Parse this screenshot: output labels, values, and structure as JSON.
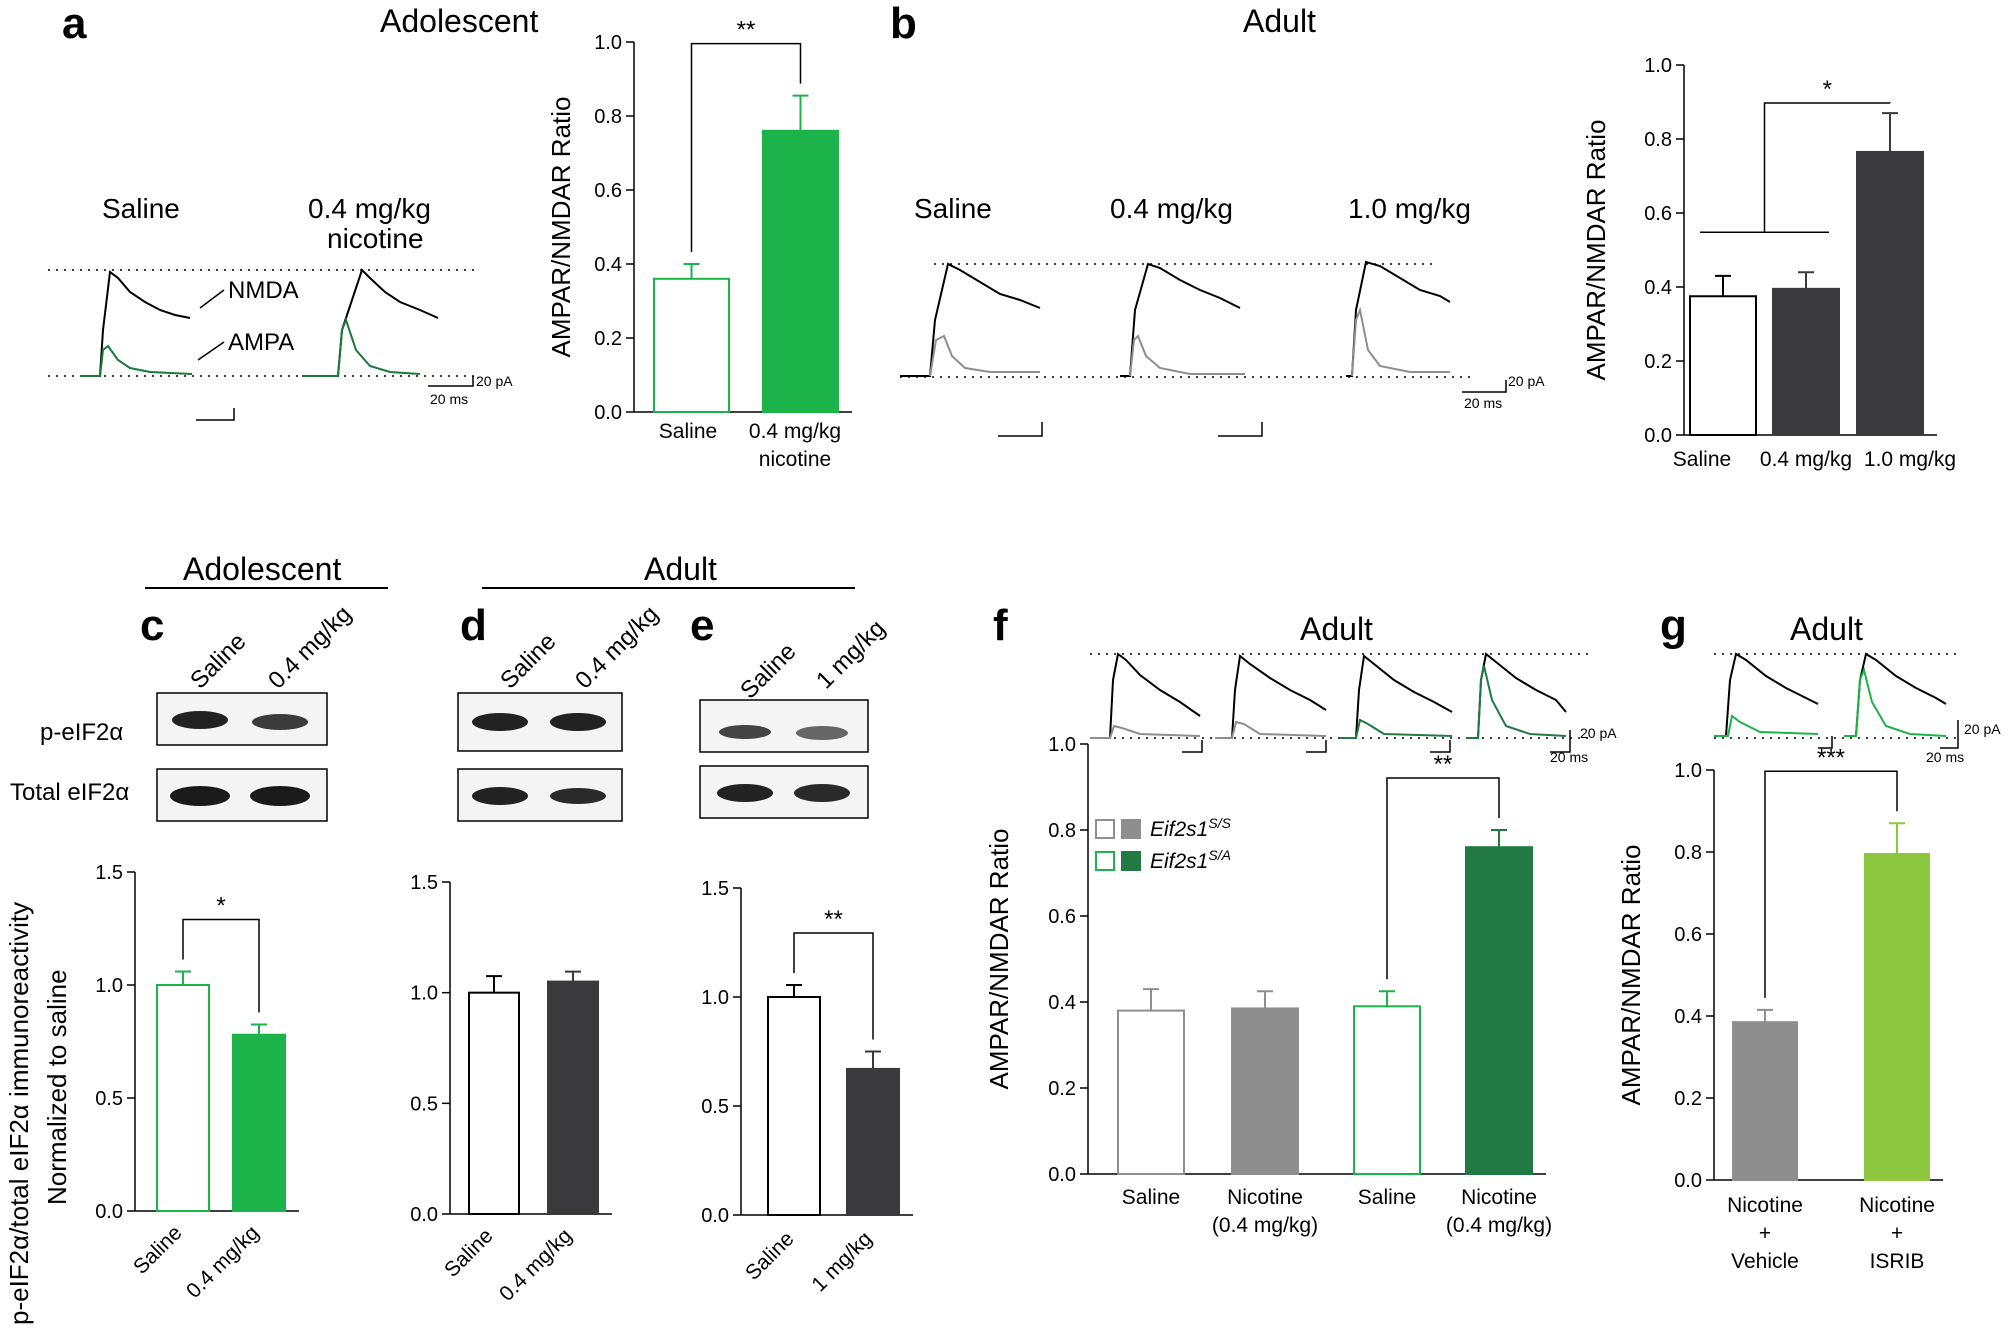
{
  "colors": {
    "green": "#1db34b",
    "dark_green": "#217a43",
    "light_green": "#8dc63f",
    "dark_gray": "#3a3a3c",
    "gray": "#8e8e8e",
    "black": "#000000",
    "outline_green": "#1db34b",
    "outline_gray": "#8e8e8e"
  },
  "panels": {
    "a": {
      "letter": "a",
      "title": "Adolescent",
      "trace_labels": [
        "Saline",
        "0.4 mg/kg",
        "nicotine"
      ],
      "nmda_label": "NMDA",
      "ampa_label": "AMPA",
      "scale_y": "20 pA",
      "scale_x": "20 ms"
    },
    "b": {
      "letter": "b",
      "title": "Adult",
      "trace_labels": [
        "Saline",
        "0.4 mg/kg",
        "1.0 mg/kg"
      ],
      "scale_y": "20 pA",
      "scale_x": "20 ms"
    },
    "c": {
      "letter": "c",
      "group_title": "Adolescent",
      "lanes": [
        "Saline",
        "0.4 mg/kg"
      ],
      "row_labels": [
        "p-eIF2α",
        "Total eIF2α"
      ],
      "ylabel_line1": "p-eIF2α/total eIF2α immunoreactivity",
      "ylabel_line2": "Normalized to saline"
    },
    "d": {
      "letter": "d",
      "group_title": "Adult",
      "lanes": [
        "Saline",
        "0.4 mg/kg"
      ]
    },
    "e": {
      "letter": "e",
      "lanes": [
        "Saline",
        "1 mg/kg"
      ]
    },
    "f": {
      "letter": "f",
      "title": "Adult",
      "scale_y": "20 pA",
      "scale_x": "20 ms"
    },
    "g": {
      "letter": "g",
      "title": "Adult",
      "scale_y": "20 pA",
      "scale_x": "20 ms"
    }
  },
  "chart_data": [
    {
      "id": "a",
      "type": "bar",
      "ylabel": "AMPAR/NMDAR Ratio",
      "ylim": [
        0,
        1.0
      ],
      "yticks": [
        "0.0",
        "0.2",
        "0.4",
        "0.6",
        "0.8",
        "1.0"
      ],
      "categories": [
        "Saline",
        "0.4 mg/kg\nnicotine"
      ],
      "values": [
        0.36,
        0.76
      ],
      "errors": [
        0.04,
        0.095
      ],
      "styles": [
        "outline_green",
        "green"
      ],
      "significance": [
        {
          "bars": [
            0,
            1
          ],
          "label": "**"
        }
      ]
    },
    {
      "id": "b",
      "type": "bar",
      "ylabel": "AMPAR/NMDAR Ratio",
      "ylim": [
        0,
        1.0
      ],
      "yticks": [
        "0.0",
        "0.2",
        "0.4",
        "0.6",
        "0.8",
        "1.0"
      ],
      "categories": [
        "Saline",
        "0.4 mg/kg",
        "1.0 mg/kg"
      ],
      "values": [
        0.375,
        0.395,
        0.765
      ],
      "errors": [
        0.055,
        0.045,
        0.105
      ],
      "styles": [
        "outline_black",
        "dark_gray",
        "dark_gray"
      ],
      "significance": [
        {
          "bars": [
            0,
            1
          ],
          "to": 2,
          "label": "*"
        }
      ]
    },
    {
      "id": "c",
      "type": "bar",
      "ylim": [
        0,
        1.5
      ],
      "yticks": [
        "0.0",
        "0.5",
        "1.0",
        "1.5"
      ],
      "categories": [
        "Saline",
        "0.4 mg/kg"
      ],
      "values": [
        1.0,
        0.78
      ],
      "errors": [
        0.06,
        0.045
      ],
      "styles": [
        "outline_green",
        "green"
      ],
      "significance": [
        {
          "bars": [
            0,
            1
          ],
          "label": "*"
        }
      ]
    },
    {
      "id": "d",
      "type": "bar",
      "ylim": [
        0,
        1.5
      ],
      "yticks": [
        "0.0",
        "0.5",
        "1.0",
        "1.5"
      ],
      "categories": [
        "Saline",
        "0.4 mg/kg"
      ],
      "values": [
        1.0,
        1.05
      ],
      "errors": [
        0.075,
        0.045
      ],
      "styles": [
        "outline_black",
        "dark_gray"
      ],
      "significance": []
    },
    {
      "id": "e",
      "type": "bar",
      "ylim": [
        0,
        1.5
      ],
      "yticks": [
        "0.0",
        "0.5",
        "1.0",
        "1.5"
      ],
      "categories": [
        "Saline",
        "1 mg/kg"
      ],
      "values": [
        1.0,
        0.67
      ],
      "errors": [
        0.055,
        0.08
      ],
      "styles": [
        "outline_black",
        "dark_gray"
      ],
      "significance": [
        {
          "bars": [
            0,
            1
          ],
          "label": "**"
        }
      ]
    },
    {
      "id": "f",
      "type": "bar",
      "ylabel": "AMPAR/NMDAR Ratio",
      "ylim": [
        0,
        1.0
      ],
      "yticks": [
        "0.0",
        "0.2",
        "0.4",
        "0.6",
        "0.8",
        "1.0"
      ],
      "categories": [
        "Saline",
        "Nicotine\n(0.4 mg/kg)",
        "Saline",
        "Nicotine\n(0.4 mg/kg)"
      ],
      "values": [
        0.38,
        0.385,
        0.39,
        0.76
      ],
      "errors": [
        0.05,
        0.04,
        0.035,
        0.04
      ],
      "styles": [
        "outline_gray",
        "gray",
        "outline_green",
        "dark_green"
      ],
      "legend": [
        {
          "label": "Eif2s1",
          "sup": "S/S",
          "styles": [
            "outline_gray",
            "gray"
          ]
        },
        {
          "label": "Eif2s1",
          "sup": "S/A",
          "styles": [
            "outline_green",
            "dark_green"
          ]
        }
      ],
      "significance": [
        {
          "bars": [
            2,
            3
          ],
          "label": "**"
        }
      ]
    },
    {
      "id": "g",
      "type": "bar",
      "ylabel": "AMPAR/NMDAR Ratio",
      "ylim": [
        0,
        1.0
      ],
      "yticks": [
        "0.0",
        "0.2",
        "0.4",
        "0.6",
        "0.8",
        "1.0"
      ],
      "categories": [
        "Nicotine\n+\nVehicle",
        "Nicotine\n+\nISRIB"
      ],
      "values": [
        0.385,
        0.795
      ],
      "errors": [
        0.03,
        0.075
      ],
      "styles": [
        "gray",
        "light_green"
      ],
      "significance": [
        {
          "bars": [
            0,
            1
          ],
          "label": "***"
        }
      ]
    }
  ]
}
